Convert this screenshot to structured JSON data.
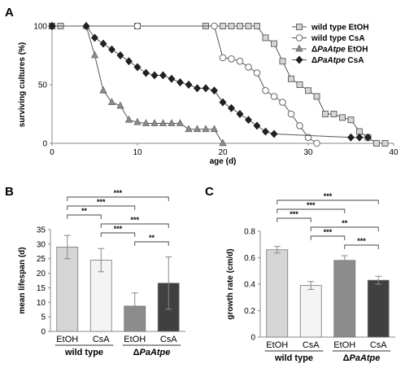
{
  "panels": {
    "a": "A",
    "b": "B",
    "c": "C"
  },
  "colors": {
    "wt_etoh": "#d6d6d6",
    "wt_csa": "#f4f4f4",
    "pa_etoh": "#8c8c8c",
    "pa_csa": "#404040",
    "axis": "#888888",
    "line": "#555555"
  },
  "chart_data": [
    {
      "id": "survival",
      "type": "line",
      "xlabel": "age (d)",
      "ylabel": "surviving cultures (%)",
      "xlim": [
        0,
        40
      ],
      "ylim": [
        0,
        100
      ],
      "xticks": [
        "0",
        "10",
        "20",
        "30",
        "40"
      ],
      "yticks": [
        "0",
        "50",
        "100"
      ],
      "legend_position": "top-right",
      "series": [
        {
          "key": "wt_etoh",
          "legend_prefix": "wild type",
          "legend_italic": "",
          "legend_suffix": "EtOH",
          "marker": "square",
          "x": [
            0,
            1,
            10,
            18,
            20,
            21,
            22,
            23,
            24,
            25,
            26,
            27,
            28,
            29,
            30,
            31,
            32,
            33,
            34,
            35,
            36,
            37,
            38,
            39
          ],
          "y": [
            100,
            100,
            100,
            100,
            100,
            100,
            100,
            100,
            100,
            90,
            85,
            70,
            55,
            50,
            45,
            40,
            25,
            25,
            22,
            20,
            10,
            5,
            0,
            0
          ]
        },
        {
          "key": "wt_csa",
          "legend_prefix": "wild type",
          "legend_italic": "",
          "legend_suffix": "CsA",
          "marker": "circle",
          "x": [
            0,
            10,
            19,
            20,
            21,
            22,
            23,
            24,
            25,
            26,
            27,
            28,
            29,
            30,
            31
          ],
          "y": [
            100,
            100,
            100,
            73,
            72,
            70,
            65,
            60,
            45,
            40,
            35,
            25,
            15,
            5,
            0
          ]
        },
        {
          "key": "pa_etoh",
          "legend_prefix": "Δ",
          "legend_italic": "PaAtpe",
          "legend_suffix": "EtOH",
          "marker": "triangle",
          "x": [
            0,
            4,
            5,
            6,
            7,
            8,
            9,
            10,
            11,
            12,
            13,
            14,
            15,
            16,
            17,
            18,
            19,
            20
          ],
          "y": [
            100,
            100,
            75,
            45,
            35,
            32,
            20,
            18,
            17,
            17,
            17,
            17,
            17,
            12,
            12,
            12,
            12,
            0
          ]
        },
        {
          "key": "pa_csa",
          "legend_prefix": "Δ",
          "legend_italic": "PaAtpe",
          "legend_suffix": "CsA",
          "marker": "diamond",
          "x": [
            0,
            4,
            5,
            6,
            7,
            8,
            9,
            10,
            11,
            12,
            13,
            14,
            15,
            16,
            17,
            18,
            19,
            20,
            21,
            22,
            23,
            24,
            25,
            26,
            35,
            36,
            37
          ],
          "y": [
            100,
            100,
            90,
            85,
            80,
            75,
            70,
            65,
            60,
            58,
            58,
            55,
            52,
            50,
            47,
            47,
            45,
            35,
            30,
            25,
            20,
            15,
            10,
            8,
            5,
            5,
            5
          ]
        }
      ]
    },
    {
      "id": "lifespan",
      "type": "bar",
      "ylabel": "mean lifespan (d)",
      "ylim": [
        0,
        35
      ],
      "yticks": [
        "0",
        "5",
        "10",
        "15",
        "20",
        "25",
        "30",
        "35"
      ],
      "categories": [
        "EtOH",
        "CsA",
        "EtOH",
        "CsA"
      ],
      "values": [
        29,
        24.5,
        8.7,
        16.6
      ],
      "errors": [
        4,
        4,
        4.5,
        9
      ],
      "bar_keys": [
        "wt_etoh",
        "wt_csa",
        "pa_etoh",
        "pa_csa"
      ],
      "groups": [
        {
          "prefix": "wild type",
          "italic": "",
          "first": 0,
          "last": 1
        },
        {
          "prefix": "Δ",
          "italic": "PaAtpe",
          "first": 2,
          "last": 3
        }
      ],
      "significance": [
        {
          "from": 0,
          "to": 3,
          "label": "***"
        },
        {
          "from": 0,
          "to": 2,
          "label": "***"
        },
        {
          "from": 0,
          "to": 1,
          "label": "**"
        },
        {
          "from": 1,
          "to": 3,
          "label": "***"
        },
        {
          "from": 1,
          "to": 2,
          "label": "***"
        },
        {
          "from": 2,
          "to": 3,
          "label": "**"
        }
      ]
    },
    {
      "id": "growth",
      "type": "bar",
      "ylabel": "growth rate (cm/d)",
      "ylim": [
        0,
        0.8
      ],
      "yticks": [
        "0",
        "0.2",
        "0.4",
        "0.6",
        "0.8"
      ],
      "categories": [
        "EtOH",
        "CsA",
        "EtOH",
        "CsA"
      ],
      "values": [
        0.66,
        0.39,
        0.58,
        0.43
      ],
      "errors": [
        0.025,
        0.03,
        0.035,
        0.03
      ],
      "bar_keys": [
        "wt_etoh",
        "wt_csa",
        "pa_etoh",
        "pa_csa"
      ],
      "groups": [
        {
          "prefix": "wild type",
          "italic": "",
          "first": 0,
          "last": 1
        },
        {
          "prefix": "Δ",
          "italic": "PaAtpe",
          "first": 2,
          "last": 3
        }
      ],
      "significance": [
        {
          "from": 0,
          "to": 3,
          "label": "***"
        },
        {
          "from": 0,
          "to": 2,
          "label": "***"
        },
        {
          "from": 0,
          "to": 1,
          "label": "***"
        },
        {
          "from": 1,
          "to": 3,
          "label": "**"
        },
        {
          "from": 1,
          "to": 2,
          "label": "***"
        },
        {
          "from": 2,
          "to": 3,
          "label": "***"
        }
      ]
    }
  ]
}
